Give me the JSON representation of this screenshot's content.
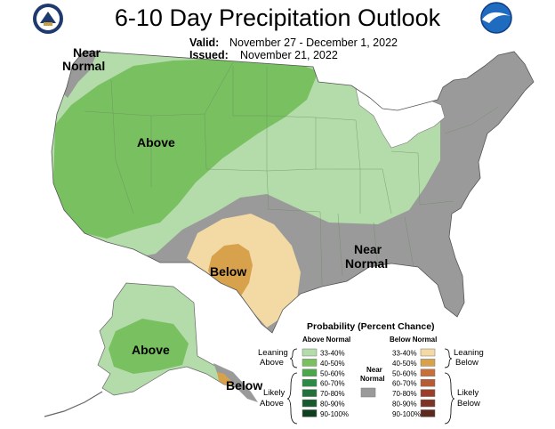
{
  "header": {
    "title": "6-10 Day Precipitation Outlook",
    "valid_label": "Valid:",
    "valid_value": "November 27 - December 1, 2022",
    "issued_label": "Issued:",
    "issued_value": "November 21, 2022"
  },
  "logos": {
    "left": "doc-seal-logo",
    "right": "noaa-logo"
  },
  "map": {
    "labels": {
      "near_normal_nw_1": "Near",
      "near_normal_nw_2": "Normal",
      "above_west": "Above",
      "below_texas": "Below",
      "near_normal_se_1": "Near",
      "near_normal_se_2": "Normal",
      "above_alaska": "Above",
      "below_alaska": "Below"
    },
    "colors": {
      "leaning_above": "#b4dcaa",
      "above_40_50": "#78c060",
      "near_normal": "#9a9a9a",
      "leaning_below": "#f3d9a3",
      "below_40_50": "#d8a24c",
      "land_no_data": "#ffffff"
    }
  },
  "legend": {
    "title": "Probability (Percent Chance)",
    "above_header": "Above Normal",
    "below_header": "Below Normal",
    "near_normal_1": "Near",
    "near_normal_2": "Normal",
    "groups": {
      "leaning_above_1": "Leaning",
      "leaning_above_2": "Above",
      "likely_above_1": "Likely",
      "likely_above_2": "Above",
      "leaning_below_1": "Leaning",
      "leaning_below_2": "Below",
      "likely_below_1": "Likely",
      "likely_below_2": "Below"
    },
    "above_items": [
      {
        "label": "33-40%",
        "color": "#b4dcaa"
      },
      {
        "label": "40-50%",
        "color": "#78c060"
      },
      {
        "label": "50-60%",
        "color": "#4aa84a"
      },
      {
        "label": "60-70%",
        "color": "#2d8a45"
      },
      {
        "label": "70-80%",
        "color": "#22703a"
      },
      {
        "label": "80-90%",
        "color": "#175a2e"
      },
      {
        "label": "90-100%",
        "color": "#0f3f1f"
      }
    ],
    "below_items": [
      {
        "label": "33-40%",
        "color": "#f3d9a3"
      },
      {
        "label": "40-50%",
        "color": "#d8a24c"
      },
      {
        "label": "50-60%",
        "color": "#c8703a"
      },
      {
        "label": "60-70%",
        "color": "#b85a34"
      },
      {
        "label": "70-80%",
        "color": "#9c3f2a"
      },
      {
        "label": "80-90%",
        "color": "#7c3424"
      },
      {
        "label": "90-100%",
        "color": "#5a2a20"
      }
    ],
    "near_color": "#9a9a9a"
  }
}
